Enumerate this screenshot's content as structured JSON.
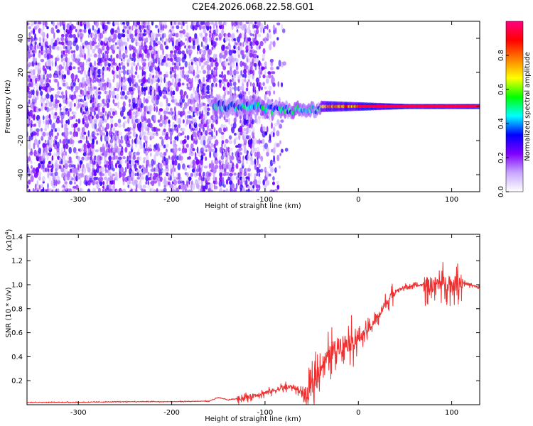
{
  "title": "C2E4.2026.068.22.58.G01",
  "chart_data": [
    {
      "type": "heatmap",
      "name": "frequency-spectrogram",
      "xlabel": "Height of straight line (km)",
      "ylabel": "Frequency (Hz)",
      "xlim": [
        -355,
        130
      ],
      "ylim": [
        -50,
        50
      ],
      "xticks": [
        -300,
        -200,
        -100,
        0,
        100
      ],
      "yticks": [
        -40,
        -20,
        0,
        20,
        40
      ],
      "grid": false,
      "colorbar": {
        "label": "Normalized spectral amplitude",
        "range": [
          0.0,
          1.0
        ],
        "ticks": [
          0.0,
          0.2,
          0.4,
          0.6,
          0.8
        ],
        "tick_labels": [
          "0.0",
          "0.2",
          "0.4",
          "0.6",
          "0.8"
        ],
        "colormap": [
          "#ffffff",
          "#c8a8ff",
          "#8000ff",
          "#0000ff",
          "#00ffff",
          "#00ff00",
          "#ffff00",
          "#ff8000",
          "#ff0000",
          "#ff0080"
        ]
      },
      "features": {
        "noise_band_x": [
          -355,
          -115
        ],
        "noise_amplitude": 0.3,
        "gap_x": -150,
        "carrier_start_x": -155,
        "carrier_freq_hz": 0.0,
        "carrier_peak_x": [
          0,
          130
        ]
      }
    },
    {
      "type": "line",
      "name": "snr-curve",
      "xlabel": "Height of straight line (km)",
      "ylabel": "SNR (10 * v/v)",
      "y_multiplier_label": "(x10",
      "y_multiplier_exp": "4",
      "y_multiplier_close": ")",
      "xlim": [
        -355,
        130
      ],
      "ylim": [
        0,
        1.42
      ],
      "xticks": [
        -300,
        -200,
        -100,
        0,
        100
      ],
      "yticks": [
        0.2,
        0.4,
        0.6,
        0.8,
        1.0,
        1.2,
        1.4
      ],
      "ytick_labels": [
        "0.2",
        "0.4",
        "0.6",
        "0.8",
        "1.0",
        "1.2",
        "1.4"
      ],
      "grid": false,
      "color": "#ee3030",
      "series": [
        {
          "name": "SNR",
          "x": [
            -355,
            -300,
            -250,
            -200,
            -160,
            -150,
            -140,
            -120,
            -100,
            -90,
            -80,
            -70,
            -60,
            -55,
            -50,
            -45,
            -40,
            -30,
            -20,
            -10,
            0,
            10,
            20,
            30,
            40,
            50,
            60,
            70,
            80,
            90,
            100,
            110,
            120,
            130
          ],
          "values": [
            0.02,
            0.02,
            0.025,
            0.025,
            0.03,
            0.06,
            0.04,
            0.06,
            0.1,
            0.12,
            0.14,
            0.15,
            0.1,
            0.06,
            0.14,
            0.25,
            0.32,
            0.42,
            0.5,
            0.52,
            0.55,
            0.62,
            0.72,
            0.85,
            0.95,
            0.98,
            0.99,
            1.0,
            1.0,
            1.02,
            1.0,
            1.02,
            1.0,
            0.97
          ]
        }
      ]
    }
  ]
}
